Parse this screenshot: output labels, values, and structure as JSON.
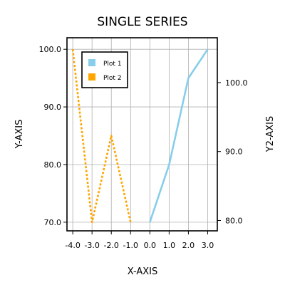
{
  "chart_data": {
    "type": "line",
    "title": "SINGLE SERIES",
    "xlabel": "X-AXIS",
    "ylabel": "Y-AXIS",
    "y2label": "Y2-AXIS",
    "xlim": [
      -4.3,
      3.5
    ],
    "ylim": [
      68.5,
      102.0
    ],
    "y2lim": [
      78.5,
      106.5
    ],
    "xticks": [
      -4,
      -3,
      -2,
      -1,
      0,
      1,
      2,
      3
    ],
    "xtick_labels": [
      "-4.0",
      "-3.0",
      "-2.0",
      "-1.0",
      "0.0",
      "1.0",
      "2.0",
      "3.0"
    ],
    "yticks": [
      70,
      80,
      90,
      100
    ],
    "ytick_labels": [
      "70.0",
      "80.0",
      "90.0",
      "100.0"
    ],
    "y2ticks": [
      80,
      90,
      100
    ],
    "y2tick_labels": [
      "80.0",
      "90.0",
      "100.0"
    ],
    "grid": true,
    "legend_position": "top-left",
    "series": [
      {
        "name": "Plot 1",
        "axis": "y",
        "style": "solid",
        "color": "#87CEEB",
        "x": [
          0,
          1,
          2,
          3
        ],
        "y": [
          70,
          80,
          95,
          100
        ]
      },
      {
        "name": "Plot 2",
        "axis": "y",
        "style": "dotted",
        "color": "#FFA500",
        "x": [
          -4,
          -3,
          -2,
          -1
        ],
        "y": [
          100,
          70,
          85,
          70
        ]
      }
    ]
  }
}
